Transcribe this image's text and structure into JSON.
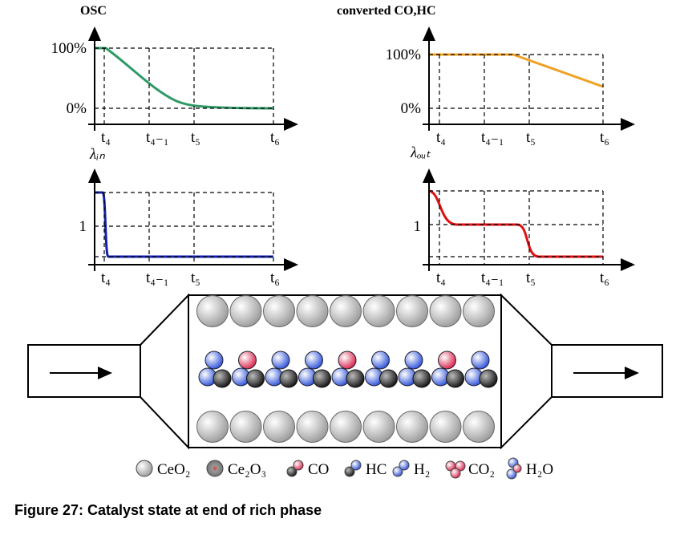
{
  "plots": [
    {
      "title": "OSC",
      "y_ticks": [
        "100%",
        "0%"
      ],
      "x_ticks": [
        "t₄",
        "t₄₋₁",
        "t₅",
        "t₆"
      ]
    },
    {
      "title": "converted CO,HC",
      "y_ticks": [
        "100%",
        "0%"
      ],
      "x_ticks": [
        "t₄",
        "t₄₋₁",
        "t₅",
        "t₆"
      ]
    },
    {
      "y_label": "λᵢₙ",
      "y_ticks": [
        "1"
      ],
      "x_ticks": [
        "t₄",
        "t₄₋₁",
        "t₅",
        "t₆"
      ]
    },
    {
      "y_label": "λₒᵤₜ",
      "y_ticks": [
        "1"
      ],
      "x_ticks": [
        "t₄",
        "t₄₋₁",
        "t₅",
        "t₆"
      ]
    }
  ],
  "legend": [
    "CeO₂",
    "Ce₂O₃",
    "CO",
    "HC",
    "H₂",
    "CO₂",
    "H₂O"
  ],
  "caption": "Figure 27: Catalyst state at end of rich phase"
}
